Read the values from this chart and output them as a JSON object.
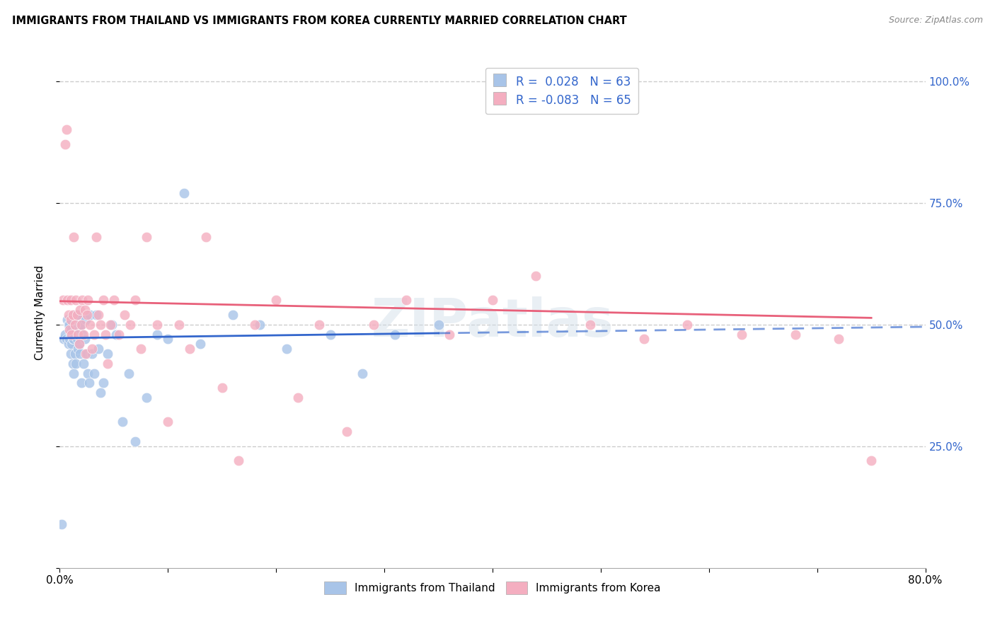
{
  "title": "IMMIGRANTS FROM THAILAND VS IMMIGRANTS FROM KOREA CURRENTLY MARRIED CORRELATION CHART",
  "source": "Source: ZipAtlas.com",
  "ylabel": "Currently Married",
  "watermark": "ZIPatlas",
  "thailand_color": "#a8c4e8",
  "korea_color": "#f4aec0",
  "thailand_line_color": "#3366cc",
  "korea_line_color": "#e8607a",
  "background_color": "#ffffff",
  "grid_color": "#cccccc",
  "xmin": 0.0,
  "xmax": 0.8,
  "ymin": 0.0,
  "ymax": 1.05,
  "thailand_R": 0.028,
  "korea_R": -0.083,
  "thailand_N": 63,
  "korea_N": 65,
  "legend_label1": "Immigrants from Thailand",
  "legend_label2": "Immigrants from Korea",
  "thailand_x": [
    0.002,
    0.004,
    0.005,
    0.006,
    0.007,
    0.008,
    0.008,
    0.009,
    0.009,
    0.01,
    0.01,
    0.011,
    0.011,
    0.012,
    0.012,
    0.013,
    0.013,
    0.014,
    0.014,
    0.015,
    0.015,
    0.016,
    0.016,
    0.017,
    0.017,
    0.018,
    0.018,
    0.019,
    0.019,
    0.02,
    0.02,
    0.021,
    0.022,
    0.023,
    0.024,
    0.025,
    0.026,
    0.027,
    0.028,
    0.03,
    0.032,
    0.034,
    0.036,
    0.038,
    0.04,
    0.044,
    0.048,
    0.052,
    0.058,
    0.064,
    0.07,
    0.08,
    0.09,
    0.1,
    0.115,
    0.13,
    0.16,
    0.185,
    0.21,
    0.25,
    0.28,
    0.31,
    0.35
  ],
  "thailand_y": [
    0.09,
    0.47,
    0.48,
    0.47,
    0.51,
    0.46,
    0.5,
    0.47,
    0.5,
    0.44,
    0.48,
    0.46,
    0.49,
    0.42,
    0.47,
    0.4,
    0.47,
    0.44,
    0.52,
    0.42,
    0.49,
    0.47,
    0.52,
    0.45,
    0.48,
    0.51,
    0.46,
    0.44,
    0.5,
    0.5,
    0.38,
    0.48,
    0.42,
    0.47,
    0.51,
    0.44,
    0.4,
    0.38,
    0.52,
    0.44,
    0.4,
    0.52,
    0.45,
    0.36,
    0.38,
    0.44,
    0.5,
    0.48,
    0.3,
    0.4,
    0.26,
    0.35,
    0.48,
    0.47,
    0.77,
    0.46,
    0.52,
    0.5,
    0.45,
    0.48,
    0.4,
    0.48,
    0.5
  ],
  "korea_x": [
    0.003,
    0.005,
    0.006,
    0.007,
    0.008,
    0.009,
    0.01,
    0.01,
    0.011,
    0.012,
    0.013,
    0.014,
    0.015,
    0.016,
    0.017,
    0.018,
    0.019,
    0.02,
    0.021,
    0.022,
    0.023,
    0.024,
    0.025,
    0.026,
    0.028,
    0.03,
    0.032,
    0.034,
    0.036,
    0.038,
    0.04,
    0.042,
    0.044,
    0.047,
    0.05,
    0.055,
    0.06,
    0.065,
    0.07,
    0.075,
    0.08,
    0.09,
    0.1,
    0.11,
    0.12,
    0.135,
    0.15,
    0.165,
    0.18,
    0.2,
    0.22,
    0.24,
    0.265,
    0.29,
    0.32,
    0.36,
    0.4,
    0.44,
    0.49,
    0.54,
    0.58,
    0.63,
    0.68,
    0.72,
    0.75
  ],
  "korea_y": [
    0.55,
    0.87,
    0.9,
    0.55,
    0.52,
    0.49,
    0.51,
    0.55,
    0.48,
    0.52,
    0.68,
    0.5,
    0.55,
    0.52,
    0.48,
    0.46,
    0.53,
    0.5,
    0.55,
    0.48,
    0.53,
    0.44,
    0.52,
    0.55,
    0.5,
    0.45,
    0.48,
    0.68,
    0.52,
    0.5,
    0.55,
    0.48,
    0.42,
    0.5,
    0.55,
    0.48,
    0.52,
    0.5,
    0.55,
    0.45,
    0.68,
    0.5,
    0.3,
    0.5,
    0.45,
    0.68,
    0.37,
    0.22,
    0.5,
    0.55,
    0.35,
    0.5,
    0.28,
    0.5,
    0.55,
    0.48,
    0.55,
    0.6,
    0.5,
    0.47,
    0.5,
    0.48,
    0.48,
    0.47,
    0.22
  ]
}
